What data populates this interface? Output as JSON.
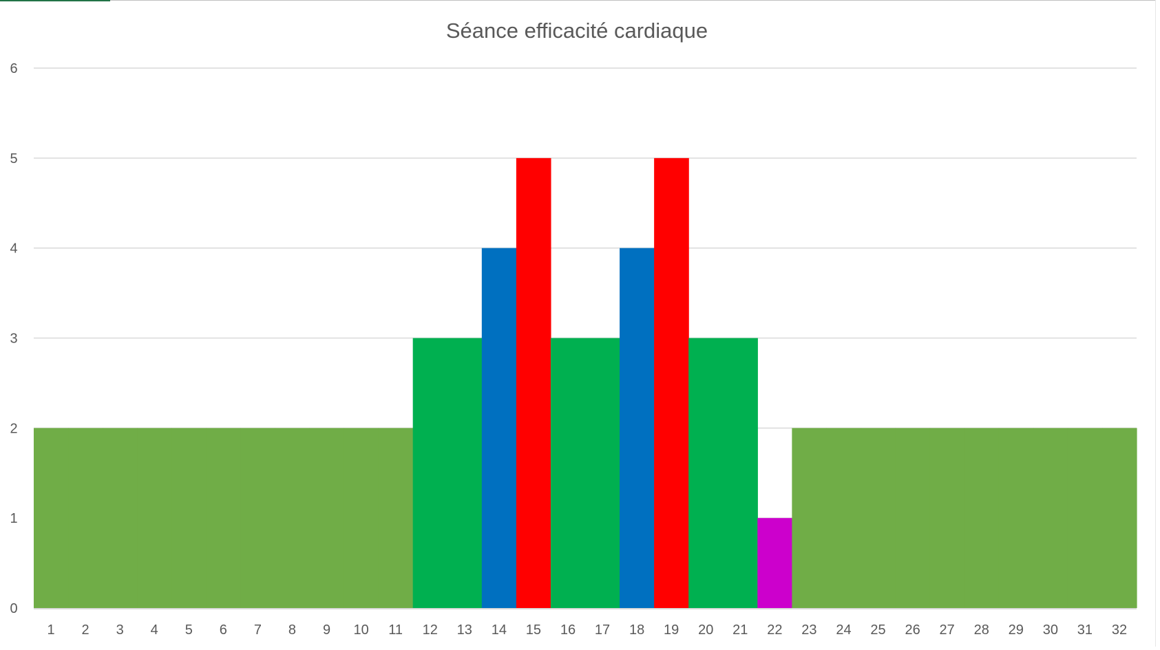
{
  "chart_data": {
    "type": "bar",
    "title": "Séance efficacité cardiaque",
    "xlabel": "",
    "ylabel": "",
    "ylim": [
      0,
      6
    ],
    "yticks": [
      0,
      1,
      2,
      3,
      4,
      5,
      6
    ],
    "categories": [
      "1",
      "2",
      "3",
      "4",
      "5",
      "6",
      "7",
      "8",
      "9",
      "10",
      "11",
      "12",
      "13",
      "14",
      "15",
      "16",
      "17",
      "18",
      "19",
      "20",
      "21",
      "22",
      "23",
      "24",
      "25",
      "26",
      "27",
      "28",
      "29",
      "30",
      "31",
      "32"
    ],
    "values": [
      2,
      2,
      2,
      2,
      2,
      2,
      2,
      2,
      2,
      2,
      2,
      3,
      3,
      4,
      5,
      3,
      3,
      4,
      5,
      3,
      3,
      1,
      2,
      2,
      2,
      2,
      2,
      2,
      2,
      2,
      2,
      2
    ],
    "bar_colors": [
      "#70ad47",
      "#70ad47",
      "#70ad47",
      "#70ad47",
      "#70ad47",
      "#70ad47",
      "#70ad47",
      "#70ad47",
      "#70ad47",
      "#70ad47",
      "#70ad47",
      "#00b050",
      "#00b050",
      "#0070c0",
      "#ff0000",
      "#00b050",
      "#00b050",
      "#0070c0",
      "#ff0000",
      "#00b050",
      "#00b050",
      "#cc00cc",
      "#70ad47",
      "#70ad47",
      "#70ad47",
      "#70ad47",
      "#70ad47",
      "#70ad47",
      "#70ad47",
      "#70ad47",
      "#70ad47",
      "#70ad47"
    ],
    "gap_width": 0,
    "grid": true,
    "legend": "none"
  },
  "colors": {
    "gridline": "#d9d9d9",
    "axis_text": "#595959",
    "title_text": "#595959",
    "axis_line": "#d9d9d9"
  }
}
